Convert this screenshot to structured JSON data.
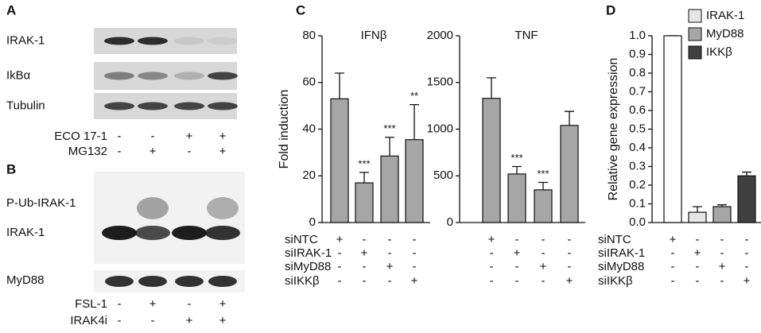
{
  "panels": {
    "A": {
      "label": "A",
      "rows": [
        "IRAK-1",
        "IkBα",
        "Tubulin"
      ],
      "conditions": [
        {
          "name": "ECO 17-1",
          "signs": [
            "-",
            "-",
            "+",
            "+"
          ]
        },
        {
          "name": "MG132",
          "signs": [
            "-",
            "+",
            "-",
            "+"
          ]
        }
      ]
    },
    "B": {
      "label": "B",
      "rows": [
        "P-Ub-IRAK-1",
        "IRAK-1",
        "MyD88"
      ],
      "conditions": [
        {
          "name": "FSL-1",
          "signs": [
            "-",
            "+",
            "-",
            "+"
          ]
        },
        {
          "name": "IRAK4i",
          "signs": [
            "-",
            "-",
            "+",
            "+"
          ]
        }
      ]
    },
    "C": {
      "label": "C",
      "conditions": [
        {
          "name": "siNTC",
          "signs": [
            "+",
            "-",
            "-",
            "-"
          ]
        },
        {
          "name": "siIRAK-1",
          "signs": [
            "-",
            "+",
            "-",
            "-"
          ]
        },
        {
          "name": "siMyD88",
          "signs": [
            "-",
            "-",
            "+",
            "-"
          ]
        },
        {
          "name": "siIKKβ",
          "signs": [
            "-",
            "-",
            "-",
            "+"
          ]
        }
      ]
    },
    "D": {
      "label": "D",
      "conditions": [
        {
          "name": "siNTC",
          "signs": [
            "+",
            "-",
            "-",
            "-"
          ]
        },
        {
          "name": "siIRAK-1",
          "signs": [
            "-",
            "+",
            "-",
            "-"
          ]
        },
        {
          "name": "siMyD88",
          "signs": [
            "-",
            "-",
            "+",
            "-"
          ]
        },
        {
          "name": "siIKKβ",
          "signs": [
            "-",
            "-",
            "-",
            "+"
          ]
        }
      ]
    }
  },
  "chart_data": [
    {
      "type": "bar",
      "title": "IFNβ",
      "y_label": "Fold induction",
      "values": [
        53,
        17,
        28.5,
        35.5
      ],
      "errors": [
        11,
        4.5,
        8,
        15
      ],
      "stars": [
        null,
        "***",
        "***",
        "**"
      ],
      "color": "#a6a6a6",
      "ylim": [
        0,
        80
      ],
      "yticks": [
        0,
        20,
        40,
        60,
        80
      ]
    },
    {
      "type": "bar",
      "title": "TNF",
      "values": [
        1330,
        520,
        350,
        1040
      ],
      "errors": [
        220,
        80,
        80,
        150
      ],
      "stars": [
        null,
        "***",
        "***",
        null
      ],
      "color": "#a6a6a6",
      "ylim": [
        0,
        2000
      ],
      "yticks": [
        0,
        500,
        1000,
        1500,
        2000
      ]
    },
    {
      "type": "bar",
      "y_label": "Relative gene expression",
      "values": [
        1.0,
        0.055,
        0.085,
        0.25
      ],
      "errors": [
        0,
        0.03,
        0.01,
        0.02
      ],
      "colors": [
        "#ffffff",
        "#e6e6e6",
        "#a6a6a6",
        "#404040"
      ],
      "legend": [
        {
          "name": "IRAK-1",
          "color": "#e6e6e6"
        },
        {
          "name": "MyD88",
          "color": "#a6a6a6"
        },
        {
          "name": "IKKβ",
          "color": "#404040"
        }
      ],
      "ylim": [
        0,
        1
      ],
      "yticks": [
        {
          "value": 0,
          "label": "0.0"
        },
        0.1,
        0.2,
        0.3,
        0.4,
        0.5,
        0.6,
        0.7,
        0.8,
        0.9,
        {
          "value": 1,
          "label": "1.0"
        }
      ]
    }
  ]
}
